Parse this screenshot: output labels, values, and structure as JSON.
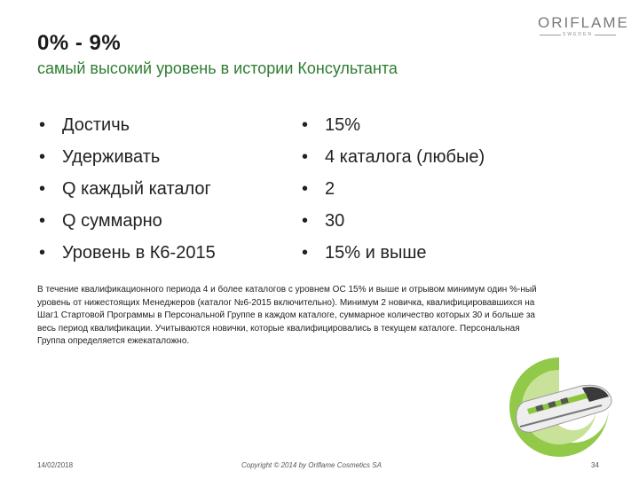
{
  "slide": {
    "title": "0% - 9%",
    "subtitle": "самый высокий уровень в истории Консультанта",
    "logo": {
      "word": "ORIFLAME",
      "sub": "SWEDEN"
    },
    "left_bullets": [
      "Достичь",
      "Удерживать",
      "Q каждый каталог",
      "Q суммарно",
      "Уровень в К6-2015"
    ],
    "right_bullets": [
      "15%",
      "4 каталога (любые)",
      "2",
      "30",
      "15% и выше"
    ],
    "note": "В течение квалификационного периода 4 и более каталогов с уровнем ОС 15% и выше и отрывом минимум один %-ный уровень от нижестоящих Менеджеров (каталог №6-2015 включительно). Минимум 2 новичка, квалифицировавшихся на Шаг1 Стартовой Программы в Персональной Группе в каждом каталоге, суммарное количество которых 30 и больше за весь период квалификации. Учитываются новички, которые квалифицировались в текущем каталоге. Персональная Группа определяется ежекаталожно.",
    "footer": {
      "date": "14/02/2018",
      "copyright": "Copyright © 2014 by Oriflame Cosmetics SA",
      "page": "34"
    }
  },
  "colors": {
    "accent_green": "#2e7d32",
    "logo_grey": "#7a7a7a",
    "swirl_green": "#8cc63f"
  },
  "icons": [
    "oriflame-logo",
    "train-illustration"
  ]
}
